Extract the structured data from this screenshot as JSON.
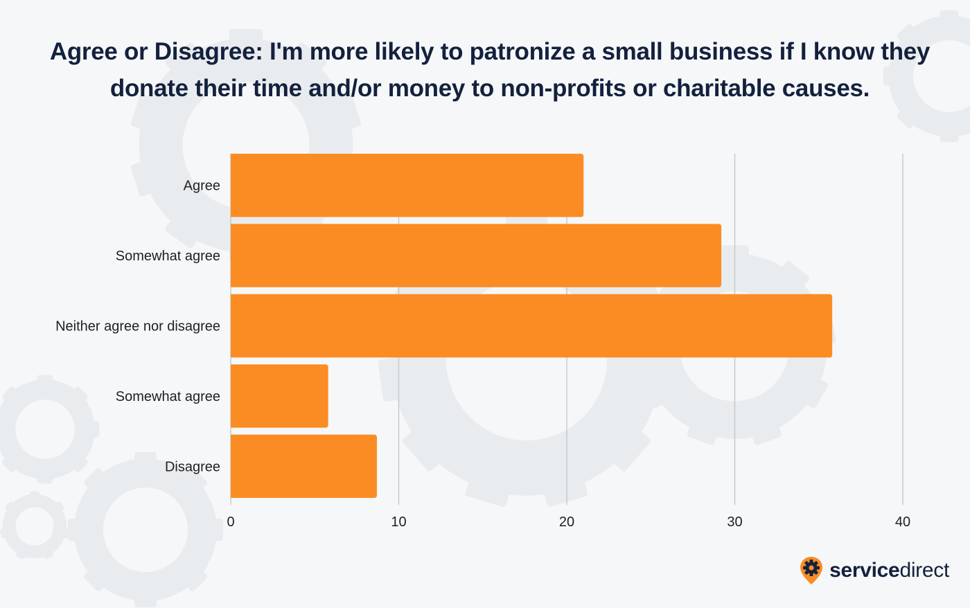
{
  "colors": {
    "background": "#f5f7f9",
    "bar": "#fb8c23",
    "title": "#14213d",
    "grid": "#c4c4c4",
    "gear_watermark": "#e9ecef",
    "brand_icon": "#fb8c23"
  },
  "chart_data": {
    "type": "bar",
    "orientation": "horizontal",
    "title": "Agree or Disagree: I'm more likely to patronize a small business if I know they donate their time and/or money to non-profits or charitable causes.",
    "categories": [
      "Agree",
      "Somewhat agree",
      "Neither agree nor disagree",
      "Somewhat agree",
      "Disagree"
    ],
    "values": [
      21,
      29.2,
      35.8,
      5.8,
      8.7
    ],
    "xlim": [
      0,
      40
    ],
    "xticks": [
      0,
      10,
      20,
      30,
      40
    ],
    "grid": true,
    "legend": "none"
  },
  "brand": {
    "name_part1": "service",
    "name_part2": "direct",
    "icon": "gear-pin-icon"
  }
}
